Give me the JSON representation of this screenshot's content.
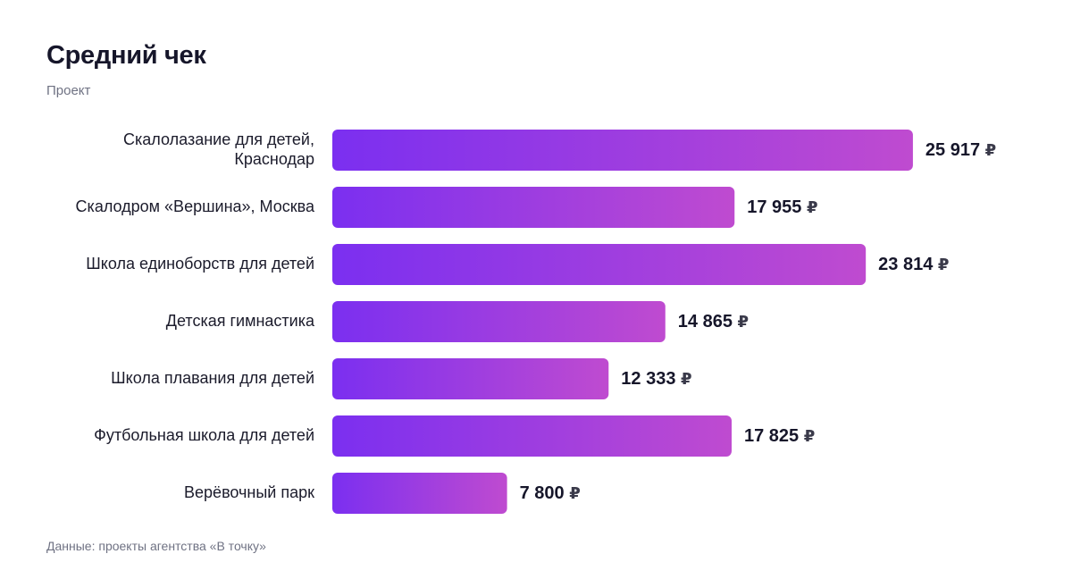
{
  "header": {
    "title": "Средний чек",
    "subtitle": "Проект"
  },
  "footer": {
    "source": "Данные: проекты агентства «В точку»"
  },
  "colors": {
    "bar_gradient_start": "#7b2ff0",
    "bar_gradient_end": "#bf4bd0"
  },
  "chart_data": {
    "type": "bar",
    "orientation": "horizontal",
    "title": "Средний чек",
    "subtitle": "Проект",
    "categories": [
      [
        "Скалолазание для детей,",
        "Краснодар"
      ],
      [
        "Скалодром «Вершина», Москва"
      ],
      [
        "Школа единоборств для детей"
      ],
      [
        "Детская гимнастика"
      ],
      [
        "Школа плавания для детей"
      ],
      [
        "Футбольная школа для детей"
      ],
      [
        "Верёвочный парк"
      ]
    ],
    "values": [
      25917,
      17955,
      23814,
      14865,
      12333,
      17825,
      7800
    ],
    "value_labels": [
      "25 917",
      "17 955",
      "23 814",
      "14 865",
      "12 333",
      "17 825",
      "7 800"
    ],
    "unit": "₽",
    "xlim": [
      0,
      26000
    ],
    "grid": false,
    "legend": "none"
  }
}
